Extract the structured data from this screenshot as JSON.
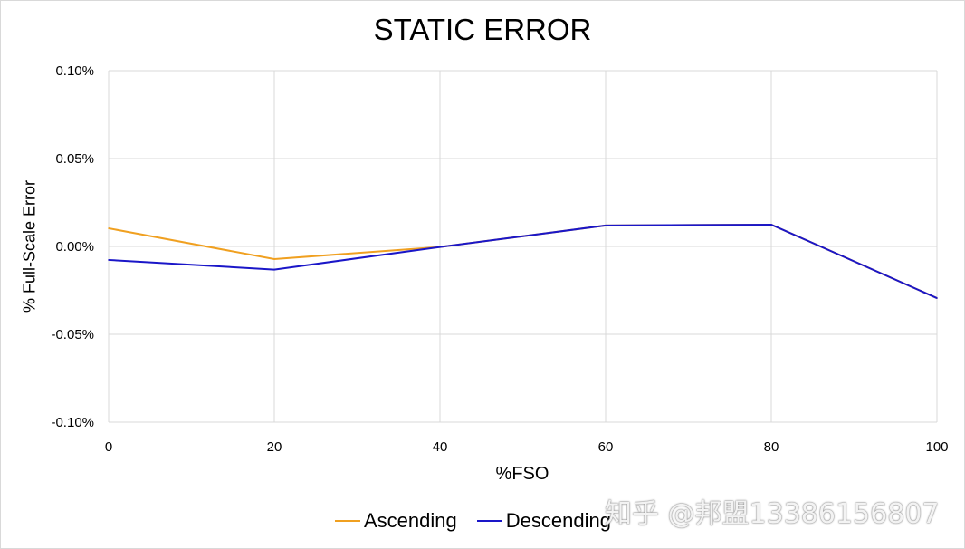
{
  "chart_data": {
    "type": "line",
    "title": "STATIC ERROR",
    "xlabel": "%FSO",
    "ylabel": "% Full-Scale Error",
    "x": [
      0,
      20,
      40,
      60,
      80,
      100
    ],
    "xlim": [
      0,
      100
    ],
    "xticks": [
      "0",
      "20",
      "40",
      "60",
      "80",
      "100"
    ],
    "ylim": [
      -0.1,
      0.1
    ],
    "yticks": [
      -0.1,
      -0.05,
      0.0,
      0.05,
      0.1
    ],
    "ytick_labels": [
      "-0.10%",
      "-0.05%",
      "0.00%",
      "0.05%",
      "0.10%"
    ],
    "grid": true,
    "legend": "bottom",
    "series": [
      {
        "name": "Ascending",
        "color": "#f0a020",
        "values": [
          0.0103,
          -0.0072,
          -0.0003,
          0.0119,
          0.0124,
          -0.0294
        ]
      },
      {
        "name": "Descending",
        "color": "#1a16c8",
        "values": [
          -0.0077,
          -0.0132,
          -0.0003,
          0.0119,
          0.0124,
          -0.0294
        ]
      }
    ]
  },
  "watermark": "知乎 @邦盟13386156807"
}
